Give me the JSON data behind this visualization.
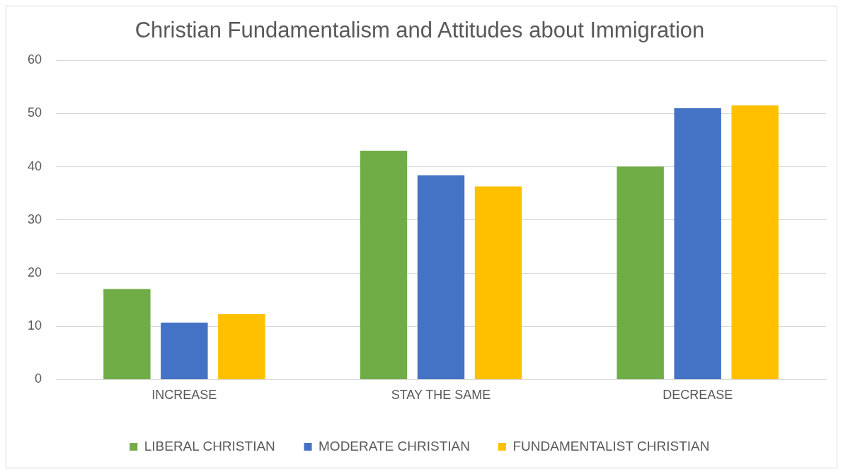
{
  "chart_data": {
    "type": "bar",
    "title": "Christian Fundamentalism and Attitudes about Immigration",
    "categories": [
      "INCREASE",
      "STAY THE SAME",
      "DECREASE"
    ],
    "series": [
      {
        "name": "LIBERAL CHRISTIAN",
        "color": "#70ad47",
        "values": [
          17,
          43,
          40
        ]
      },
      {
        "name": "MODERATE CHRISTIAN",
        "color": "#4472c4",
        "values": [
          10.7,
          38.4,
          51
        ]
      },
      {
        "name": "FUNDAMENTALIST CHRISTIAN",
        "color": "#ffc000",
        "values": [
          12.3,
          36.3,
          51.5
        ]
      }
    ],
    "ylim": [
      0,
      60
    ],
    "yticks": [
      0,
      10,
      20,
      30,
      40,
      50,
      60
    ],
    "grid": "y",
    "legend": "bottom"
  }
}
